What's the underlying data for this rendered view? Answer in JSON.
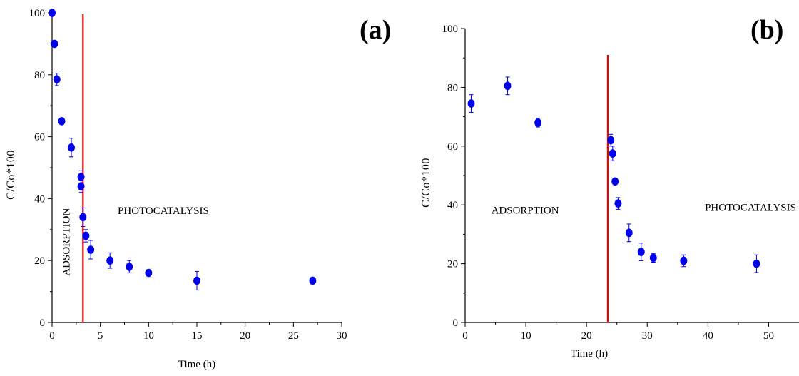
{
  "chart_data": [
    {
      "type": "scatter",
      "panel_label": "(a)",
      "xlabel": "Time (h)",
      "ylabel": "C/Co*100",
      "xlim": [
        0,
        30
      ],
      "ylim": [
        0,
        100
      ],
      "xticks": [
        0,
        5,
        10,
        15,
        20,
        25,
        30
      ],
      "yticks": [
        0,
        20,
        40,
        60,
        80,
        100
      ],
      "marker_color": "#0000ee",
      "vline": {
        "x": 3.2,
        "color": "#ee0000"
      },
      "annotations": [
        {
          "text": "ADSORPTION",
          "x": 1.8,
          "y": 26,
          "rotate": true
        },
        {
          "text": "PHOTOCATALYSIS",
          "x": 6.8,
          "y": 35,
          "rotate": false
        }
      ],
      "points": [
        {
          "x": 0,
          "y": 100,
          "err": 0
        },
        {
          "x": 0.25,
          "y": 90,
          "err": 1
        },
        {
          "x": 0.5,
          "y": 78.5,
          "err": 2
        },
        {
          "x": 1,
          "y": 65,
          "err": 1
        },
        {
          "x": 2,
          "y": 56.5,
          "err": 3
        },
        {
          "x": 3,
          "y": 47,
          "err": 2
        },
        {
          "x": 3,
          "y": 44,
          "err": 2
        },
        {
          "x": 3.2,
          "y": 34,
          "err": 3
        },
        {
          "x": 3.5,
          "y": 28,
          "err": 2
        },
        {
          "x": 4,
          "y": 23.5,
          "err": 3
        },
        {
          "x": 6,
          "y": 20,
          "err": 2.5
        },
        {
          "x": 8,
          "y": 18,
          "err": 2
        },
        {
          "x": 10,
          "y": 16,
          "err": 1
        },
        {
          "x": 15,
          "y": 13.5,
          "err": 3
        },
        {
          "x": 27,
          "y": 13.5,
          "err": 1
        }
      ]
    },
    {
      "type": "scatter",
      "panel_label": "(b)",
      "xlabel": "Time (h)",
      "ylabel": "C/Co*100",
      "xlim": [
        0,
        55
      ],
      "ylim": [
        0,
        100
      ],
      "xticks": [
        0,
        10,
        20,
        30,
        40,
        50
      ],
      "yticks": [
        0,
        20,
        40,
        60,
        80,
        100
      ],
      "marker_color": "#0000ee",
      "vline": {
        "x": 23.5,
        "color": "#ee0000"
      },
      "annotations": [
        {
          "text": "ADSORPTION",
          "x": 4.3,
          "y": 37,
          "rotate": false
        },
        {
          "text": "PHOTOCATALYSIS",
          "x": 39.5,
          "y": 38,
          "rotate": false
        }
      ],
      "points": [
        {
          "x": 1,
          "y": 74.5,
          "err": 3
        },
        {
          "x": 7,
          "y": 80.5,
          "err": 3
        },
        {
          "x": 12,
          "y": 68,
          "err": 1.5
        },
        {
          "x": 24,
          "y": 62,
          "err": 2
        },
        {
          "x": 24.3,
          "y": 57.5,
          "err": 2.5
        },
        {
          "x": 24.7,
          "y": 48,
          "err": 1
        },
        {
          "x": 25.2,
          "y": 40.5,
          "err": 2
        },
        {
          "x": 27,
          "y": 30.5,
          "err": 3
        },
        {
          "x": 29,
          "y": 24,
          "err": 3
        },
        {
          "x": 31,
          "y": 22,
          "err": 1.5
        },
        {
          "x": 36,
          "y": 21,
          "err": 2
        },
        {
          "x": 48,
          "y": 20,
          "err": 3
        }
      ]
    }
  ]
}
